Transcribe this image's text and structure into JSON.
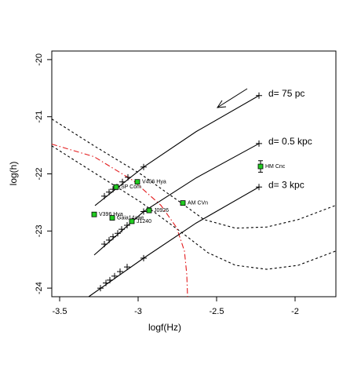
{
  "chart_data": {
    "type": "line",
    "xlabel": "logf(Hz)",
    "ylabel": "log(h)",
    "xlim": [
      -3.55,
      -1.74
    ],
    "ylim": [
      -24.15,
      -19.85
    ],
    "xticks": [
      -3.5,
      -3,
      -2.5,
      -2
    ],
    "yticks": [
      -24,
      -23,
      -22,
      -21,
      -20
    ],
    "series": [
      {
        "name": "d=  75 pc",
        "color": "#000000",
        "x": [
          -3.275,
          -2.965,
          -2.63,
          -2.23
        ],
        "y": [
          -22.555,
          -21.88,
          -21.26,
          -20.63
        ],
        "cross_x": [
          -3.215,
          -3.185,
          -3.16,
          -3.135,
          -3.1,
          -3.065,
          -2.965,
          -2.23
        ],
        "cross_y": [
          -22.39,
          -22.32,
          -22.27,
          -22.23,
          -22.14,
          -22.06,
          -21.88,
          -20.63
        ]
      },
      {
        "name": "d= 0.5 kpc",
        "color": "#000000",
        "x": [
          -3.28,
          -2.965,
          -2.63,
          -2.23
        ],
        "y": [
          -23.42,
          -22.66,
          -22.07,
          -21.47
        ],
        "cross_x": [
          -3.215,
          -3.185,
          -3.16,
          -3.13,
          -3.105,
          -3.07,
          -2.965,
          -2.23
        ],
        "cross_y": [
          -23.23,
          -23.16,
          -23.1,
          -23.04,
          -22.97,
          -22.9,
          -22.66,
          -21.47
        ]
      },
      {
        "name": "d=   3 kpc",
        "color": "#000000",
        "x": [
          -3.315,
          -2.965,
          -2.63,
          -2.23
        ],
        "y": [
          -24.15,
          -23.475,
          -22.86,
          -22.23
        ],
        "cross_x": [
          -3.24,
          -3.205,
          -3.18,
          -3.15,
          -3.115,
          -3.07,
          -2.965,
          -2.23
        ],
        "cross_y": [
          -24.0,
          -23.91,
          -23.86,
          -23.79,
          -23.71,
          -23.63,
          -23.475,
          -22.23
        ]
      }
    ],
    "curves": [
      {
        "style": "dashed",
        "color": "#000000",
        "x": [
          -3.55,
          -3.28,
          -2.98,
          -2.73,
          -2.58,
          -2.38,
          -2.18,
          -1.98,
          -1.74
        ],
        "y": [
          -21.04,
          -21.51,
          -22.01,
          -22.5,
          -22.8,
          -22.95,
          -22.93,
          -22.8,
          -22.55
        ]
      },
      {
        "style": "dashed",
        "color": "#000000",
        "x": [
          -3.55,
          -3.28,
          -2.98,
          -2.73,
          -2.555,
          -2.38,
          -2.18,
          -1.98,
          -1.74
        ],
        "y": [
          -21.51,
          -21.98,
          -22.5,
          -23.01,
          -23.38,
          -23.6,
          -23.67,
          -23.6,
          -23.35
        ]
      },
      {
        "style": "dashdot",
        "color": "#e31a1c",
        "x": [
          -3.55,
          -3.28,
          -3.03,
          -2.855,
          -2.755,
          -2.705,
          -2.69,
          -2.685
        ],
        "y": [
          -21.48,
          -21.7,
          -22.12,
          -22.55,
          -22.94,
          -23.35,
          -23.76,
          -24.15
        ]
      }
    ],
    "source_color": "#22cc22",
    "sources": [
      {
        "label": "SP Com",
        "x": -3.14,
        "y": -22.23
      },
      {
        "label": "V406 Hya",
        "x": -3.005,
        "y": -22.14
      },
      {
        "label": "V396 Hya",
        "x": -3.28,
        "y": -22.71
      },
      {
        "label": "Gaia14aae",
        "x": -3.165,
        "y": -22.77
      },
      {
        "label": "J1240",
        "x": -3.04,
        "y": -22.83
      },
      {
        "label": "J0926",
        "x": -2.93,
        "y": -22.64
      },
      {
        "label": "AM CVn",
        "x": -2.715,
        "y": -22.51
      },
      {
        "label": "HM Cnc",
        "x": -2.22,
        "y": -21.87,
        "yerr": 0.1
      }
    ]
  }
}
